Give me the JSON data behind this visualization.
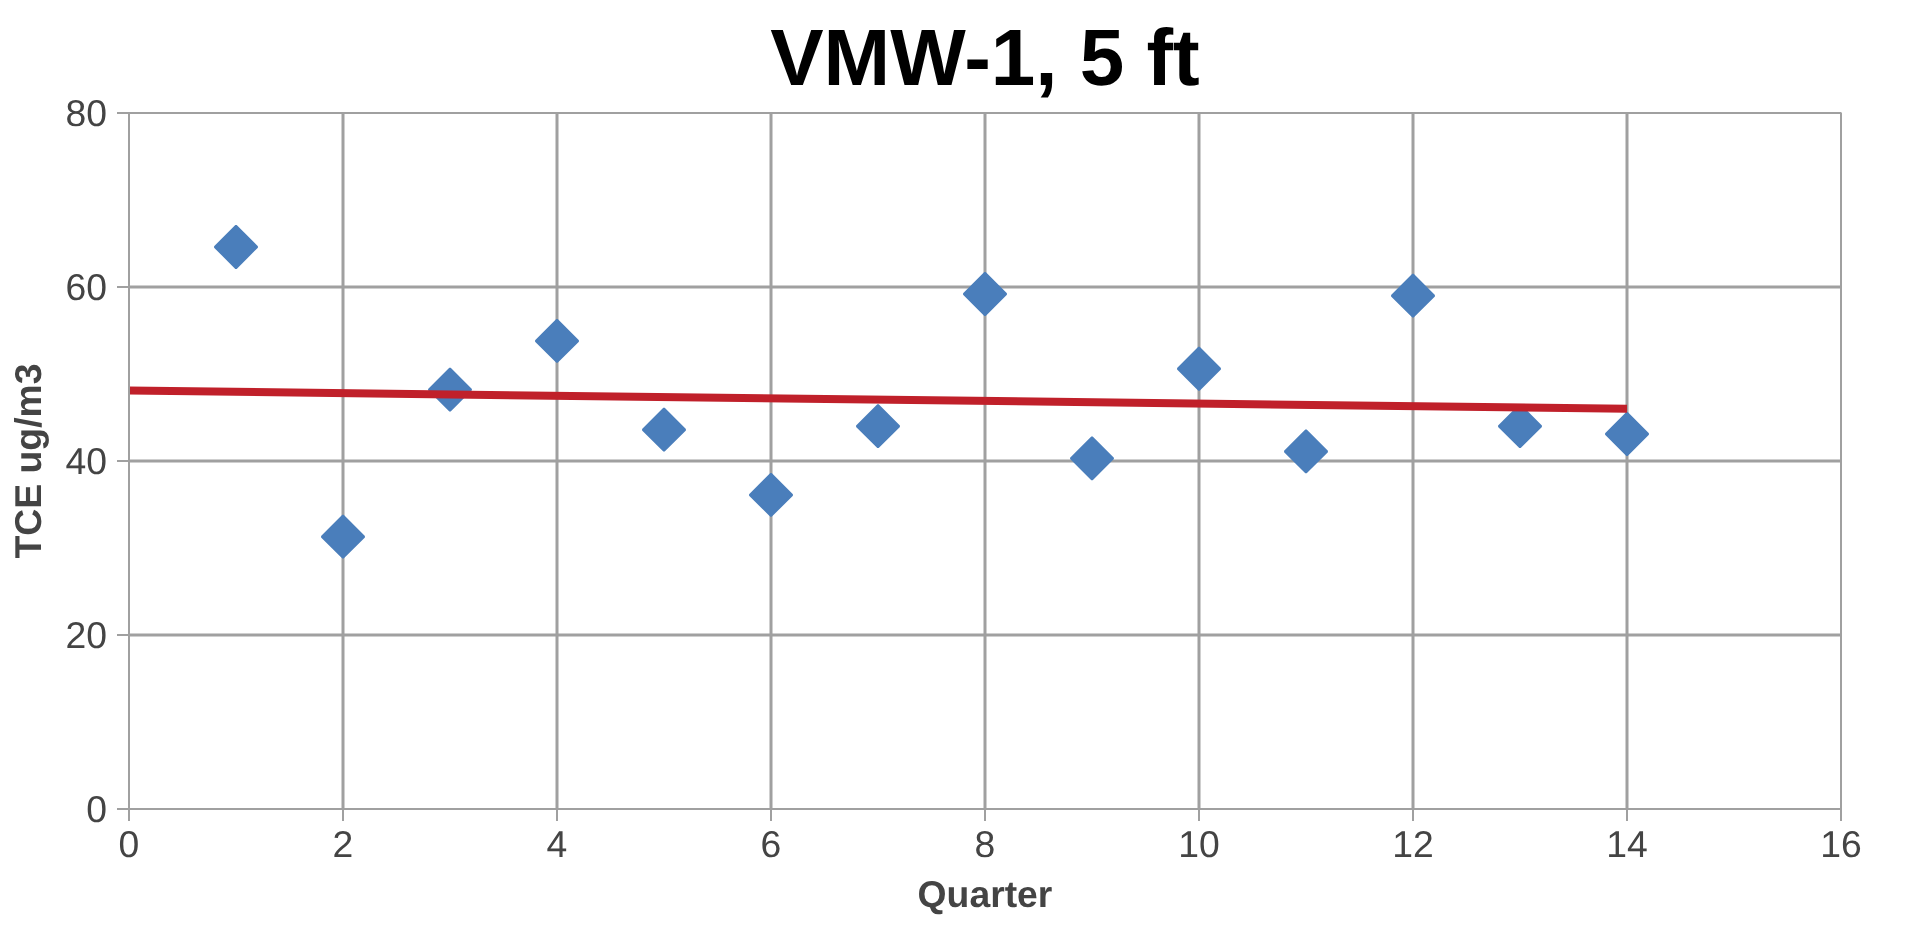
{
  "chart_data": {
    "type": "scatter",
    "title": "VMW-1, 5 ft",
    "xlabel": "Quarter",
    "ylabel": "TCE ug/m3",
    "xlim": [
      0,
      16
    ],
    "xticks": [
      0,
      2,
      4,
      6,
      8,
      10,
      12,
      14,
      16
    ],
    "ylim": [
      0,
      80
    ],
    "yticks": [
      0,
      20,
      40,
      60,
      80
    ],
    "grid": true,
    "series": [
      {
        "marker": "diamond",
        "color": "#4a7ebb",
        "x": [
          1,
          2,
          3,
          4,
          5,
          6,
          7,
          8,
          9,
          10,
          11,
          12,
          13,
          14
        ],
        "values": [
          64.6,
          31.3,
          48.2,
          53.8,
          43.6,
          36.1,
          44.0,
          59.2,
          40.3,
          50.6,
          41.1,
          59.0,
          44.0,
          43.1
        ]
      },
      {
        "type": "line",
        "color": "#c0202a",
        "line_style": "solid",
        "x": [
          0,
          14
        ],
        "values": [
          48.1,
          46.0
        ]
      }
    ]
  }
}
